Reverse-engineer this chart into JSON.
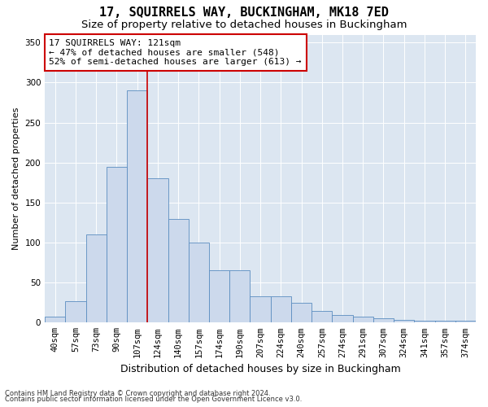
{
  "title1": "17, SQUIRRELS WAY, BUCKINGHAM, MK18 7ED",
  "title2": "Size of property relative to detached houses in Buckingham",
  "xlabel": "Distribution of detached houses by size in Buckingham",
  "ylabel": "Number of detached properties",
  "footnote1": "Contains HM Land Registry data © Crown copyright and database right 2024.",
  "footnote2": "Contains public sector information licensed under the Open Government Licence v3.0.",
  "categories": [
    "40sqm",
    "57sqm",
    "73sqm",
    "90sqm",
    "107sqm",
    "124sqm",
    "140sqm",
    "157sqm",
    "174sqm",
    "190sqm",
    "207sqm",
    "224sqm",
    "240sqm",
    "257sqm",
    "274sqm",
    "291sqm",
    "307sqm",
    "324sqm",
    "341sqm",
    "357sqm",
    "374sqm"
  ],
  "values": [
    7,
    27,
    110,
    195,
    290,
    180,
    130,
    100,
    65,
    65,
    33,
    33,
    25,
    15,
    9,
    7,
    5,
    3,
    2,
    2,
    2
  ],
  "bar_color": "#ccd9ec",
  "bar_edge_color": "#5b8dc0",
  "vline_color": "#cc0000",
  "annotation_text": "17 SQUIRRELS WAY: 121sqm\n← 47% of detached houses are smaller (548)\n52% of semi-detached houses are larger (613) →",
  "annotation_box_facecolor": "#ffffff",
  "annotation_box_edgecolor": "#cc0000",
  "ylim": [
    0,
    360
  ],
  "yticks": [
    0,
    50,
    100,
    150,
    200,
    250,
    300,
    350
  ],
  "grid_color": "#ffffff",
  "bg_color": "#dce6f1",
  "title1_fontsize": 11,
  "title2_fontsize": 9.5,
  "xlabel_fontsize": 9,
  "ylabel_fontsize": 8,
  "tick_fontsize": 7.5,
  "annotation_fontsize": 8,
  "footnote_fontsize": 6
}
